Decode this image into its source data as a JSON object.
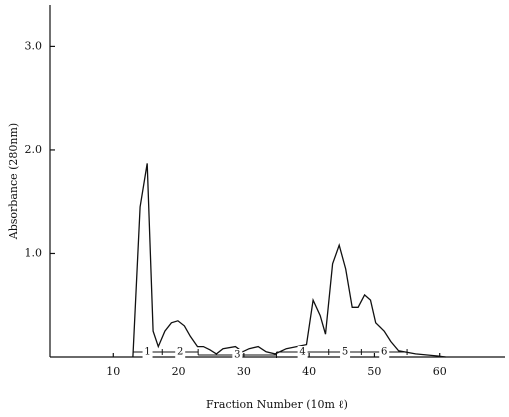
{
  "chart_data": {
    "type": "line",
    "x_label": "Fraction Number (10m ℓ)",
    "y_label": "Absorbance (280nm)",
    "xlim": [
      0,
      70
    ],
    "ylim": [
      0,
      3.4
    ],
    "xticks": [
      10,
      20,
      30,
      40,
      50,
      60
    ],
    "yticks": [
      {
        "value": 1,
        "label": "1.0"
      },
      {
        "value": 2,
        "label": "2.0"
      },
      {
        "value": 3,
        "label": "3.0"
      }
    ],
    "color": "#111111",
    "x": [
      13.0,
      14.1,
      15.2,
      16.1,
      16.9,
      17.9,
      18.9,
      19.9,
      20.9,
      21.8,
      22.9,
      23.8,
      24.8,
      25.8,
      26.8,
      28.7,
      29.8,
      30.8,
      32.2,
      33.4,
      34.8,
      36.5,
      39.6,
      40.6,
      41.7,
      42.5,
      43.6,
      44.6,
      45.6,
      46.6,
      47.5,
      48.5,
      49.4,
      50.2,
      51.5,
      52.5,
      53.7,
      56.3,
      59.7,
      60.9
    ],
    "values": [
      0,
      1.45,
      1.87,
      0.25,
      0.1,
      0.25,
      0.33,
      0.35,
      0.3,
      0.2,
      0.1,
      0.1,
      0.07,
      0.03,
      0.08,
      0.1,
      0.05,
      0.08,
      0.1,
      0.05,
      0.03,
      0.08,
      0.12,
      0.55,
      0.4,
      0.22,
      0.9,
      1.08,
      0.85,
      0.48,
      0.48,
      0.6,
      0.55,
      0.33,
      0.25,
      0.15,
      0.06,
      0.03,
      0.01,
      0
    ],
    "fractions": [
      {
        "label": "1",
        "range": [
          13,
          17.5
        ]
      },
      {
        "label": "2",
        "range": [
          17.5,
          23
        ]
      },
      {
        "label": "3",
        "range": [
          23,
          35
        ]
      },
      {
        "label": "4",
        "range": [
          35,
          43
        ]
      },
      {
        "label": "5",
        "range": [
          43,
          48
        ]
      },
      {
        "label": "6",
        "range": [
          48,
          55
        ]
      }
    ]
  }
}
